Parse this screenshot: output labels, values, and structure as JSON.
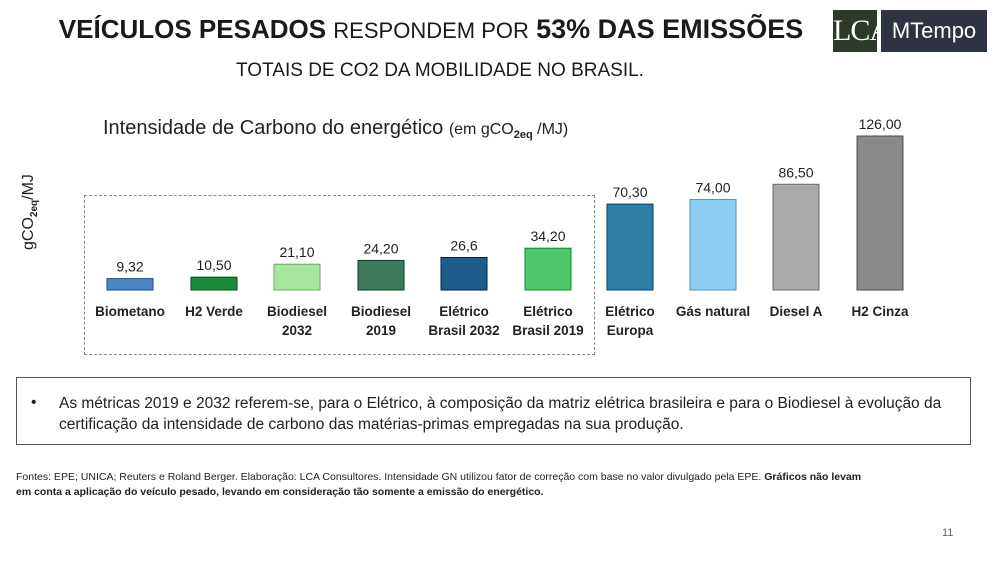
{
  "header": {
    "title_part1": "VEÍCULOS PESADOS",
    "title_part2": "RESPONDEM POR",
    "title_part3": "53% DAS EMISSÕES",
    "subtitle": "TOTAIS DE CO2 DA MOBILIDADE NO BRASIL."
  },
  "logos": {
    "lca": "LCA",
    "mtempo": "MTempo"
  },
  "chart_data": {
    "type": "bar",
    "title": "Intensidade de Carbono do energético",
    "title_unit_prefix": "(em gCO",
    "title_unit_sub": "2eq",
    "title_unit_suffix": " /MJ)",
    "ylabel_main": "gCO",
    "ylabel_sub": "2eq",
    "ylabel_suffix": "/MJ",
    "categories": [
      [
        "Biometano"
      ],
      [
        "H2 Verde"
      ],
      [
        "Biodiesel",
        "2032"
      ],
      [
        "Biodiesel",
        "2019"
      ],
      [
        "Elétrico",
        "Brasil 2032"
      ],
      [
        "Elétrico",
        "Brasil 2019"
      ],
      [
        "Elétrico",
        "Europa"
      ],
      [
        "Gás natural"
      ],
      [
        "Diesel A"
      ],
      [
        "H2 Cinza"
      ]
    ],
    "values": [
      9.32,
      10.5,
      21.1,
      24.2,
      26.6,
      34.2,
      70.3,
      74.0,
      86.5,
      126.0
    ],
    "value_labels": [
      "9,32",
      "10,50",
      "21,10",
      "24,20",
      "26,6",
      "34,20",
      "70,30",
      "74,00",
      "86,50",
      "126,00"
    ],
    "colors": [
      "#4f86c6",
      "#1e8a3c",
      "#a8e6a0",
      "#3f7a5e",
      "#1f5c8a",
      "#4cc86a",
      "#2e7fa3",
      "#8ccdf2",
      "#a9a9a9",
      "#8a8a8a"
    ],
    "ylim": [
      0,
      126
    ]
  },
  "note": {
    "bullet": "•",
    "text": "As métricas 2019 e 2032 referem-se, para o Elétrico, à composição da matriz elétrica brasileira e para o Biodiesel à evolução da certificação da intensidade de carbono das matérias-primas empregadas na sua produção."
  },
  "footnote": {
    "normal": "Fontes: EPE; UNICA; Reuters  e Roland Berger. Elaboração: LCA Consultores. Intensidade GN utilizou fator de correção com base no valor divulgado pela EPE.",
    "bold": "Gráficos não levam em conta a aplicação do veículo pesado, levando em consideração tão somente a emissão do energético."
  },
  "page_number": "11"
}
